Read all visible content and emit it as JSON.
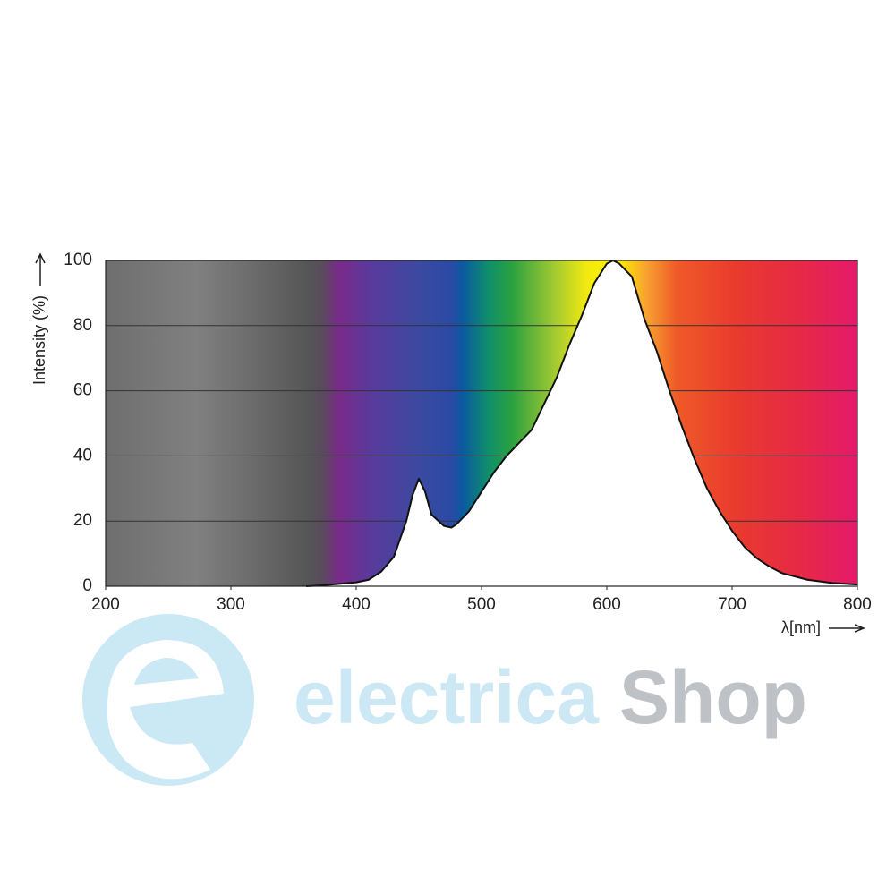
{
  "chart_data": {
    "type": "area",
    "ylabel": "Intensity (%)",
    "xlabel": "λ[nm]",
    "x": [
      360,
      370,
      380,
      400,
      410,
      420,
      430,
      440,
      445,
      450,
      455,
      460,
      470,
      476,
      480,
      490,
      500,
      510,
      520,
      530,
      540,
      550,
      560,
      570,
      580,
      590,
      600,
      605,
      610,
      620,
      630,
      640,
      650,
      660,
      670,
      680,
      690,
      700,
      710,
      720,
      730,
      740,
      760,
      780,
      800
    ],
    "values": [
      0,
      0.2,
      0.5,
      1.2,
      2,
      4.5,
      9,
      20,
      28,
      33,
      29,
      22,
      18.5,
      18,
      19,
      23,
      29,
      35,
      40,
      44,
      48,
      56,
      64,
      74,
      83,
      93,
      99,
      100,
      99,
      95,
      82,
      72,
      60,
      49,
      39,
      30,
      23,
      17,
      12,
      8.5,
      6,
      4,
      2,
      1,
      0.5
    ],
    "color": "#ffffff",
    "line_color": "#111111",
    "xlim": [
      200,
      800
    ],
    "xticks": [
      200,
      300,
      400,
      500,
      600,
      700,
      800
    ],
    "ylim": [
      0,
      100
    ],
    "yticks": [
      0,
      20,
      40,
      60,
      80,
      100
    ],
    "grid": true
  },
  "watermark": {
    "brand_part1": "electrica",
    "brand_part2": "Shop"
  }
}
